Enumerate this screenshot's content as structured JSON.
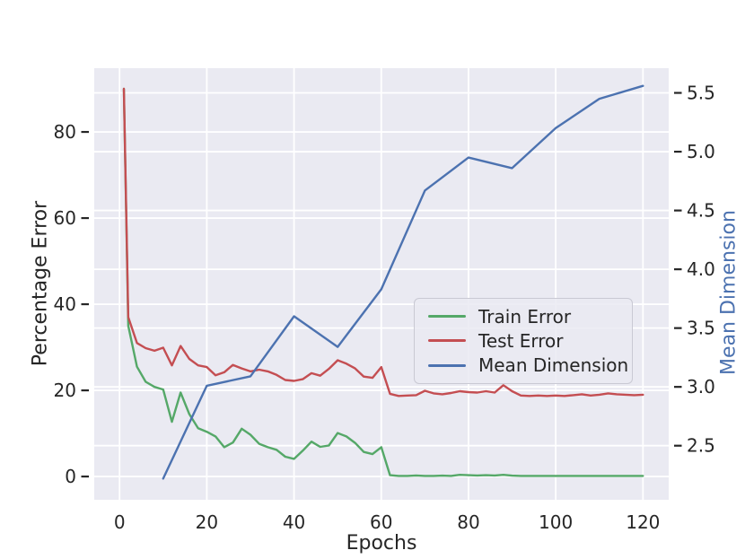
{
  "chart_data": {
    "type": "line",
    "title": "",
    "xlabel": "Epochs",
    "ylabel_left": "Percentage Error",
    "ylabel_right": "Mean Dimension",
    "xlim": [
      -5.8,
      125.9
    ],
    "ylim_left": [
      -5.4,
      94.8
    ],
    "ylim_right": [
      2.04,
      5.71
    ],
    "x_ticks": [
      0,
      20,
      40,
      60,
      80,
      100,
      120
    ],
    "y_ticks_left": [
      0,
      20,
      40,
      60,
      80
    ],
    "y_ticks_right": [
      "2.5",
      "3.0",
      "3.5",
      "4.0",
      "4.5",
      "5.0",
      "5.5"
    ],
    "grid": true,
    "legend_position": "center right",
    "series": [
      {
        "name": "Train Error",
        "color": "#55a868",
        "axis": "left",
        "x": [
          1,
          2,
          4,
          6,
          8,
          10,
          12,
          14,
          16,
          18,
          20,
          22,
          24,
          26,
          28,
          30,
          32,
          34,
          36,
          38,
          40,
          42,
          44,
          46,
          48,
          50,
          52,
          54,
          56,
          58,
          60,
          62,
          64,
          66,
          68,
          70,
          72,
          74,
          76,
          78,
          80,
          82,
          84,
          86,
          88,
          90,
          92,
          94,
          96,
          98,
          100,
          102,
          104,
          106,
          108,
          110,
          112,
          114,
          116,
          118,
          120
        ],
        "y": [
          90,
          35,
          25.5,
          22,
          20.8,
          20.2,
          12.7,
          19.5,
          14.5,
          11.2,
          10.4,
          9.3,
          6.8,
          7.9,
          11.1,
          9.7,
          7.6,
          6.8,
          6.2,
          4.6,
          4.1,
          6,
          8.1,
          6.9,
          7.2,
          10.1,
          9.3,
          7.8,
          5.7,
          5.2,
          6.8,
          0.3,
          0.15,
          0.15,
          0.25,
          0.15,
          0.15,
          0.2,
          0.15,
          0.4,
          0.3,
          0.25,
          0.3,
          0.25,
          0.4,
          0.2,
          0.15,
          0.15,
          0.15,
          0.15,
          0.15,
          0.15,
          0.15,
          0.15,
          0.15,
          0.15,
          0.15,
          0.15,
          0.15,
          0.15,
          0.15
        ]
      },
      {
        "name": "Test Error",
        "color": "#c44e52",
        "axis": "left",
        "x": [
          1,
          2,
          4,
          6,
          8,
          10,
          12,
          14,
          16,
          18,
          20,
          22,
          24,
          26,
          28,
          30,
          32,
          34,
          36,
          38,
          40,
          42,
          44,
          46,
          48,
          50,
          52,
          54,
          56,
          58,
          60,
          62,
          64,
          66,
          68,
          70,
          72,
          74,
          76,
          78,
          80,
          82,
          84,
          86,
          88,
          90,
          92,
          94,
          96,
          98,
          100,
          102,
          104,
          106,
          108,
          110,
          112,
          114,
          116,
          118,
          120
        ],
        "y": [
          90,
          37,
          31,
          29.8,
          29.2,
          29.9,
          25.8,
          30.3,
          27.3,
          25.8,
          25.4,
          23.5,
          24.2,
          25.9,
          25.1,
          24.4,
          24.8,
          24.4,
          23.6,
          22.4,
          22.2,
          22.6,
          24,
          23.4,
          25,
          27,
          26.2,
          25.1,
          23.2,
          22.9,
          25.4,
          19.2,
          18.7,
          18.8,
          18.9,
          19.9,
          19.3,
          19.1,
          19.4,
          19.8,
          19.6,
          19.5,
          19.8,
          19.5,
          21.2,
          19.8,
          18.8,
          18.7,
          18.8,
          18.7,
          18.8,
          18.7,
          18.9,
          19.1,
          18.8,
          19,
          19.3,
          19.1,
          19,
          18.9,
          19
        ]
      },
      {
        "name": "Mean Dimension",
        "color": "#4c72b0",
        "axis": "right",
        "x": [
          10,
          20,
          30,
          40,
          50,
          60,
          70,
          80,
          90,
          100,
          110,
          120
        ],
        "y": [
          2.22,
          3.01,
          3.09,
          3.6,
          3.34,
          3.83,
          4.67,
          4.95,
          4.86,
          5.2,
          5.45,
          5.56
        ]
      }
    ]
  },
  "style": {
    "figure_bg": "#ffffff",
    "plot_bg": "#eaeaf2",
    "grid_color": "#ffffff",
    "text_color": "#262626",
    "right_label_color": "#4c72b0",
    "legend_bg": "rgba(234,234,242,0.85)",
    "legend_border": "#c9c9d3"
  }
}
